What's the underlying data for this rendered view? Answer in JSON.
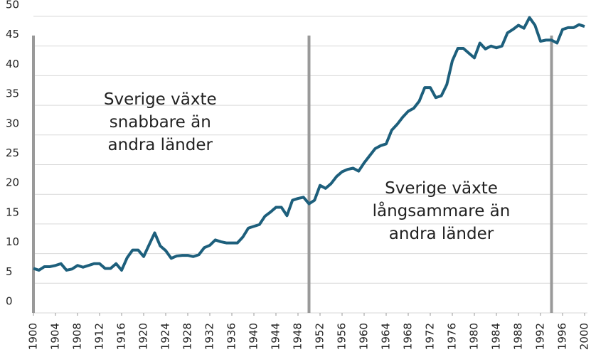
{
  "chart_data": {
    "type": "line",
    "x": [
      1900,
      1901,
      1902,
      1903,
      1904,
      1905,
      1906,
      1907,
      1908,
      1909,
      1910,
      1911,
      1912,
      1913,
      1914,
      1915,
      1916,
      1917,
      1918,
      1919,
      1920,
      1921,
      1922,
      1923,
      1924,
      1925,
      1926,
      1927,
      1928,
      1929,
      1930,
      1931,
      1932,
      1933,
      1934,
      1935,
      1936,
      1937,
      1938,
      1939,
      1940,
      1941,
      1942,
      1943,
      1944,
      1945,
      1946,
      1947,
      1948,
      1949,
      1950,
      1951,
      1952,
      1953,
      1954,
      1955,
      1956,
      1957,
      1958,
      1959,
      1960,
      1961,
      1962,
      1963,
      1964,
      1965,
      1966,
      1967,
      1968,
      1969,
      1970,
      1971,
      1972,
      1973,
      1974,
      1975,
      1976,
      1977,
      1978,
      1979,
      1980,
      1981,
      1982,
      1983,
      1984,
      1985,
      1986,
      1987,
      1988,
      1989,
      1990,
      1991,
      1992,
      1993,
      1994,
      1995,
      1996,
      1997,
      1998,
      1999,
      2000
    ],
    "series": [
      {
        "color": "#1d5f7c",
        "values": [
          7.5,
          7.2,
          7.8,
          7.8,
          8.0,
          8.3,
          7.2,
          7.4,
          8.0,
          7.7,
          8.0,
          8.3,
          8.3,
          7.5,
          7.5,
          8.3,
          7.2,
          9.3,
          10.6,
          10.6,
          9.5,
          11.5,
          13.5,
          11.3,
          10.5,
          9.2,
          9.6,
          9.7,
          9.7,
          9.5,
          9.8,
          11.0,
          11.4,
          12.3,
          12.0,
          11.8,
          11.8,
          11.8,
          12.8,
          14.3,
          14.6,
          14.9,
          16.3,
          17.0,
          17.8,
          17.8,
          16.4,
          19.0,
          19.3,
          19.5,
          18.4,
          19.0,
          21.5,
          21.0,
          21.8,
          23.0,
          23.8,
          24.2,
          24.4,
          23.9,
          25.3,
          26.5,
          27.7,
          28.2,
          28.5,
          30.8,
          31.8,
          33.0,
          34.0,
          34.5,
          35.7,
          38.0,
          38.0,
          36.3,
          36.6,
          38.5,
          42.5,
          44.6,
          44.6,
          43.8,
          43.0,
          45.5,
          44.5,
          45.0,
          44.7,
          45.0,
          47.2,
          47.8,
          48.5,
          48.0,
          49.8,
          48.5,
          45.8,
          46.0,
          46.0,
          45.5,
          47.8,
          48.1,
          48.1,
          48.6,
          48.3
        ]
      }
    ],
    "xlim": [
      1900,
      2000
    ],
    "xticks": [
      1900,
      1904,
      1908,
      1912,
      1916,
      1920,
      1924,
      1928,
      1932,
      1936,
      1940,
      1944,
      1948,
      1952,
      1956,
      1960,
      1964,
      1968,
      1972,
      1976,
      1980,
      1984,
      1988,
      1992,
      1996,
      2000
    ],
    "ylim": [
      0,
      50
    ],
    "yticks": [
      0,
      5,
      10,
      15,
      20,
      25,
      30,
      35,
      40,
      45,
      50
    ],
    "grid": true,
    "vlines": [
      1900,
      1950,
      1994
    ],
    "vline_color": "#999999",
    "annotations": [
      {
        "x": 1923,
        "y": 36,
        "lines": [
          "Sverige växte",
          "snabbare än",
          "andra länder"
        ]
      },
      {
        "x": 1974,
        "y": 21,
        "lines": [
          "Sverige växte",
          "långsammare än",
          "andra länder"
        ]
      }
    ]
  }
}
